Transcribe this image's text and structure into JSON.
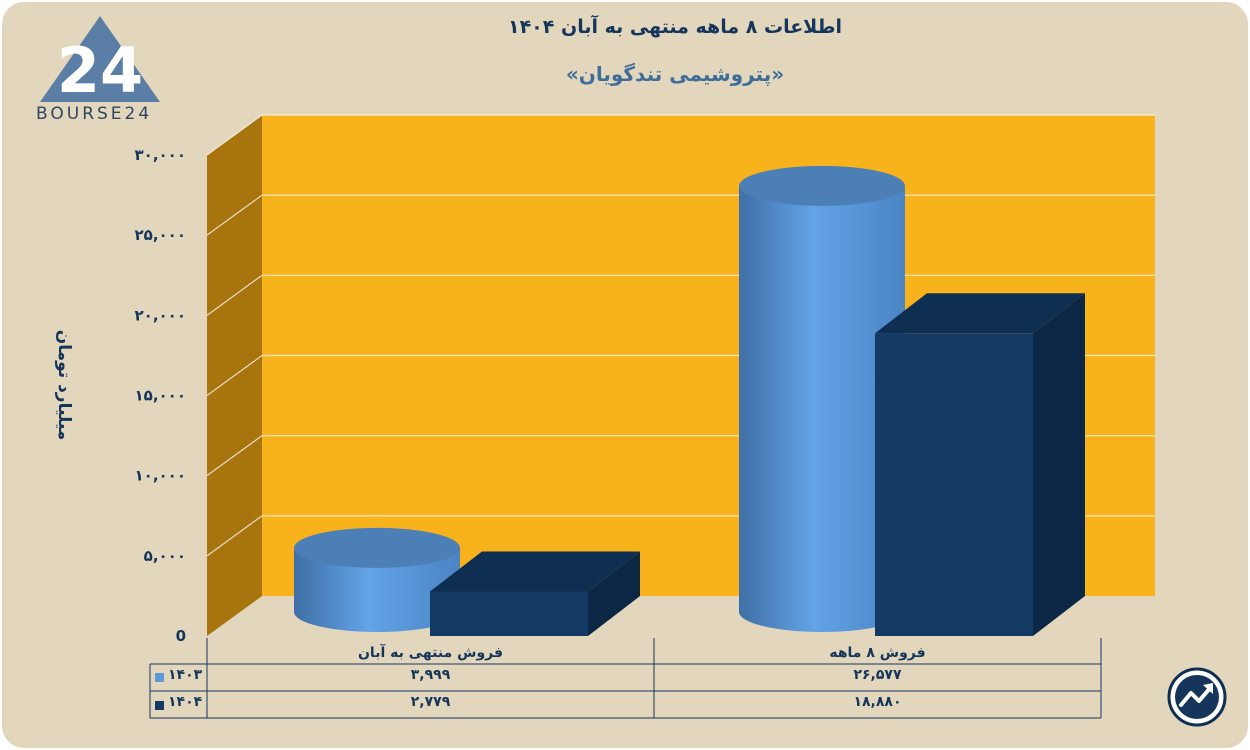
{
  "title": "اطلاعات ۸ ماهه منتهی به آبان ۱۴۰۴",
  "subtitle": "«پتروشیمی تندگویان»",
  "logo_text": "BOURSE24",
  "logo_mark": "24",
  "colors": {
    "series1": "#5b9bdc",
    "series2": "#133a63",
    "plot_bg": "#f7b21c",
    "side_wall": "#a8740d",
    "frame_bg": "#e2d7bd",
    "text": "#15365a"
  },
  "chart_data": {
    "type": "bar",
    "categories": [
      "فروش منتهی به  آبان",
      "فروش ۸ ماهه"
    ],
    "series": [
      {
        "name": "۱۴۰۳",
        "values": [
          3999,
          26577
        ],
        "labels": [
          "۳,۹۹۹",
          "۲۶,۵۷۷"
        ],
        "shape": "cylinder"
      },
      {
        "name": "۱۴۰۴",
        "values": [
          2779,
          18880
        ],
        "labels": [
          "۲,۷۷۹",
          "۱۸,۸۸۰"
        ],
        "shape": "box"
      }
    ],
    "ylabel": "میلیارد تومان",
    "ylim": [
      0,
      30000
    ],
    "yticks": [
      0,
      5000,
      10000,
      15000,
      20000,
      25000,
      30000
    ],
    "ytick_labels": [
      "0",
      "۵,۰۰۰",
      "۱۰,۰۰۰",
      "۱۵,۰۰۰",
      "۲۰,۰۰۰",
      "۲۵,۰۰۰",
      "۳۰,۰۰۰"
    ],
    "grid": true,
    "legend": "data-table-bottom"
  },
  "icons": {
    "logo": "bourse24-logo-icon",
    "badge": "trend-arrow-badge-icon"
  }
}
